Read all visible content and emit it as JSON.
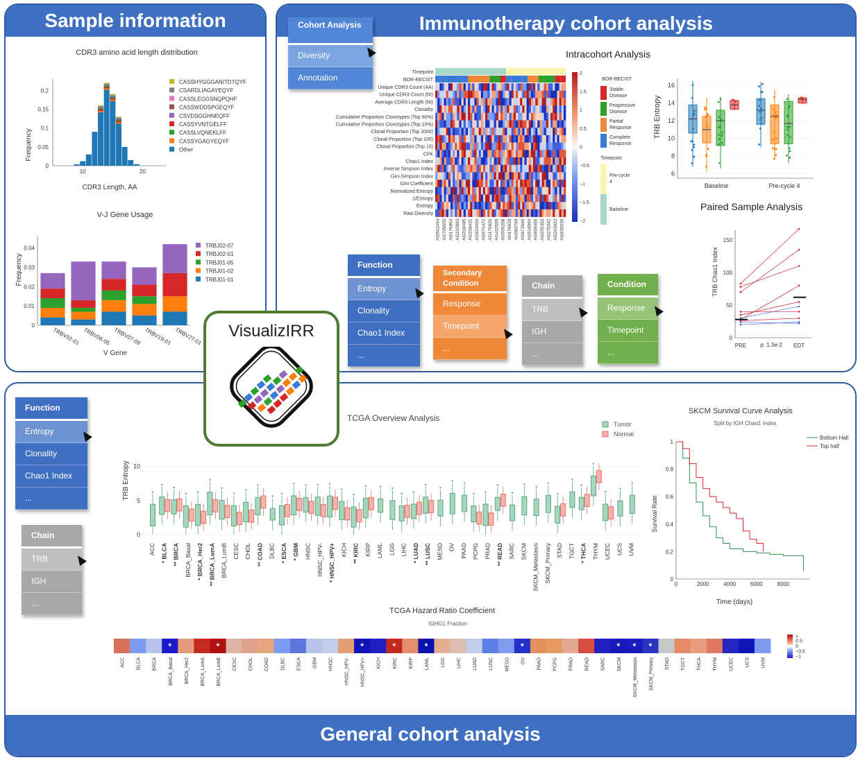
{
  "panels": {
    "sample_info": "Sample information",
    "immuno": "Immunotherapy cohort analysis",
    "general": "General cohort analysis",
    "logo": "VisualizIRR"
  },
  "colors": {
    "blue": "#3e6fc1",
    "orange": "#f0883a",
    "gray": "#a8a8a8",
    "green": "#72b04d",
    "border": "#2e5aa8",
    "logo_border": "#4f7a32"
  },
  "cdr3_chart": {
    "title": "CDR3 amino acid length distribution",
    "xlabel": "CDR3 Length, AA",
    "ylabel": "Frequency",
    "yticks": [
      "0",
      "0.05",
      "0.1",
      "0.15",
      "0.2"
    ],
    "xticks": [
      "10",
      "20"
    ],
    "legend": [
      "CASSHYGGGANITDTQYF",
      "CSARDLIAGAYEQYF",
      "CASSLEGGSNQPQHF",
      "CASSWDDSPGEQYF",
      "CSVDSGGHNEQFF",
      "CASSYVNTGELFF",
      "CASSLVQNEKLFF",
      "CASSYGAGYEQYF",
      "Other"
    ],
    "legend_colors": [
      "#bcbd22",
      "#7f7f7f",
      "#e377c2",
      "#8c564b",
      "#9467bd",
      "#d62728",
      "#2ca02c",
      "#ff7f0e",
      "#1f77b4"
    ]
  },
  "chart_data": [
    {
      "type": "bar",
      "title": "CDR3 amino acid length distribution",
      "xlabel": "CDR3 Length, AA",
      "ylabel": "Frequency",
      "x": [
        9,
        10,
        11,
        12,
        13,
        14,
        15,
        16,
        17,
        18,
        19
      ],
      "values": [
        0.004,
        0.012,
        0.03,
        0.09,
        0.16,
        0.22,
        0.19,
        0.13,
        0.05,
        0.015,
        0.004
      ],
      "ylim": [
        0,
        0.23
      ]
    },
    {
      "type": "bar",
      "title": "V-J Gene Usage",
      "xlabel": "V Gene",
      "ylabel": "Frequency",
      "categories": [
        "TRBV02-01",
        "TRBV06-05",
        "TRBV07-09",
        "TRBV19-01",
        "TRBV27-01"
      ],
      "series": [
        {
          "name": "TRBJ01-01",
          "values": [
            0.004,
            0.003,
            0.007,
            0.005,
            0.007
          ]
        },
        {
          "name": "TRBJ01-02",
          "values": [
            0.005,
            0.004,
            0.006,
            0.006,
            0.008
          ]
        },
        {
          "name": "TRBJ01-05",
          "values": [
            0.005,
            0.002,
            0.005,
            0.004,
            0.0
          ]
        },
        {
          "name": "TRBJ02-01",
          "values": [
            0.005,
            0.004,
            0.006,
            0.006,
            0.012
          ]
        },
        {
          "name": "TRBJ02-07",
          "values": [
            0.008,
            0.02,
            0.009,
            0.009,
            0.015
          ]
        }
      ],
      "ylim": [
        0,
        0.046
      ]
    },
    {
      "type": "line",
      "title": "SKCM Survival Curve Analysis",
      "subtitle": "Split by IGH Chao1 Index",
      "xlabel": "Time (days)",
      "ylabel": "Survival Rate",
      "series": [
        {
          "name": "Bottom Half",
          "x": [
            0,
            500,
            1000,
            1500,
            2000,
            2500,
            3000,
            3500,
            4000,
            5000,
            6000,
            7000,
            8000,
            9500
          ],
          "y": [
            1,
            0.88,
            0.7,
            0.56,
            0.46,
            0.38,
            0.3,
            0.26,
            0.22,
            0.2,
            0.19,
            0.18,
            0.17,
            0.06
          ]
        },
        {
          "name": "Top half",
          "x": [
            0,
            500,
            1000,
            1500,
            2000,
            2500,
            3000,
            3500,
            4000,
            4500,
            5000,
            5500,
            6000,
            6500
          ],
          "y": [
            1,
            0.95,
            0.84,
            0.74,
            0.66,
            0.6,
            0.56,
            0.52,
            0.48,
            0.44,
            0.35,
            0.29,
            0.26,
            0.2
          ]
        }
      ],
      "xlim": [
        0,
        10000
      ],
      "ylim": [
        0,
        1
      ]
    }
  ],
  "vj_chart": {
    "title": "V-J Gene Usage",
    "xlabel": "V Gene",
    "ylabel": "Frequency",
    "yticks": [
      "0",
      "0.01",
      "0.02",
      "0.03",
      "0.04"
    ],
    "legend": [
      "TRBJ02-07",
      "TRBJ02-01",
      "TRBJ01-05",
      "TRBJ01-02",
      "TRBJ01-01"
    ],
    "legend_colors": [
      "#9467bd",
      "#d62728",
      "#2ca02c",
      "#ff7f0e",
      "#1f77b4"
    ]
  },
  "cohort_menu": [
    "Cohort Analysis",
    "Diversity",
    "Annotation"
  ],
  "intracohort": {
    "title": "Intracohort Analysis",
    "track_labels": [
      "Timepoint",
      "BOR-RECIST"
    ],
    "row_labels": [
      "Unique CDR3 Count (AA)",
      "Unique CDR3 Count (Nt)",
      "Average CDR3 Length (Nt)",
      "Clonality",
      "Cumulative Proportion Clonotypes (Top 50%)",
      "Cumulative Proportion Clonotypes (Top 10%)",
      "Clonal Proportion (Top 1000)",
      "Clonal Proportion (Top 100)",
      "Clonal Proportion (Top 10)",
      "CPK",
      "Chao1 Index",
      "Inverse Simpson Index",
      "Gini-Simpson Index",
      "Gini Coefficient",
      "Normalized Entropy",
      "1/Entropy",
      "Entropy",
      "Raw Diversity"
    ],
    "col_labels": [
      "AG542464",
      "AG709555",
      "AG176963",
      "AG222893",
      "AG318485",
      "AG318431",
      "AG624450",
      "AG671472",
      "AG176920",
      "AG432595",
      "AG555208",
      "AH176929",
      "AH083769",
      "AG673660",
      "AG516994",
      "AG659465",
      "AG225362",
      "AG275342",
      "AG243922",
      "AG635530"
    ],
    "colorbar_ticks": [
      "2",
      "1.5",
      "1",
      "0.5",
      "0",
      "−0.5",
      "−1",
      "−1.5",
      "−2"
    ],
    "legend_title_1": "BOR-RECIST",
    "legend_1": [
      "Stable Disease",
      "Progressive Disease",
      "Partial Response",
      "Complete Response"
    ],
    "legend_title_2": "Timepoint",
    "legend_2": [
      "Pre-cycle 4",
      "Baseline"
    ]
  },
  "box_chart": {
    "ylabel": "TRB Entropy",
    "yticks": [
      "6",
      "8",
      "10",
      "12",
      "14",
      "16"
    ],
    "xticks": [
      "Baseline",
      "Pre-cycle 4"
    ]
  },
  "paired": {
    "title": "Paired Sample Analysis",
    "ylabel": "TRB Chao1 Index",
    "yticks": [
      "0",
      "50",
      "100",
      "150"
    ],
    "xticks": [
      "PRE",
      "EDT"
    ],
    "pvalue": "p: 1.3e-2"
  },
  "menus": {
    "function": [
      "Function",
      "Entropy",
      "Clonality",
      "Chao1 Index",
      "..."
    ],
    "secondary": [
      "Secondary Condition",
      "Response",
      "Timepoint",
      "..."
    ],
    "chain": [
      "Chain",
      "TRB",
      "IGH",
      "..."
    ],
    "condition": [
      "Condition",
      "Response",
      "Timepoint",
      "..."
    ]
  },
  "tcga": {
    "title": "TCGA Overview Analysis",
    "ylabel": "TRB Entropy",
    "yticks": [
      "0",
      "5",
      "10"
    ],
    "legend": [
      "Tumor",
      "Normal"
    ],
    "categories": [
      "ACC",
      "* BLCA",
      "** BRCA",
      "BRCA_Basal",
      "* BRCA_Her2",
      "** BRCA_LumA",
      "BRCA_LumB",
      "CESC",
      "CHOL",
      "** COAD",
      "DLBC",
      "* ESCA",
      "* GBM",
      "HNSC",
      "HNSC_HPV-",
      "* HNSC_HPV+",
      "KICH",
      "** KIRC",
      "KIRP",
      "LAML",
      "LGG",
      "LIHC",
      "* LUAD",
      "** LUSC",
      "MESO",
      "OV",
      "PAAD",
      "PCPG",
      "PRAD",
      "** READ",
      "SARC",
      "SKCM",
      "SKCM_Metastasis",
      "SKCM_Primary",
      "STAD",
      "TGCT",
      "* THCA",
      "THYM",
      "UCEC",
      "UCS",
      "UVM"
    ]
  },
  "hazard": {
    "title": "TCGA Hazard Ratio Coefficient",
    "subtitle": "IGHG1 Fraction",
    "categories": [
      "ACC",
      "BLCA",
      "BRCA",
      "BRCA_Basal",
      "BRCA_Her2",
      "BRCA_LumA",
      "BRCA_LumB",
      "CESC",
      "CHOL",
      "COAD",
      "DLBC",
      "ESCA",
      "GBM",
      "HNSC",
      "HNSC_HPV-",
      "HNSC_HPV+",
      "KICH",
      "KIRC",
      "KIRP",
      "LAML",
      "LGG",
      "LIHC",
      "LUAD",
      "LUSC",
      "MESO",
      "OV",
      "PAAD",
      "PCPG",
      "PRAD",
      "READ",
      "SARC",
      "SKCM",
      "SKCM_Metastasis",
      "SKCM_Primary",
      "STAD",
      "TGCT",
      "THCA",
      "THYM",
      "UCEC",
      "UCS",
      "UVM"
    ],
    "colorbar_ticks": [
      "1",
      "0.5",
      "0",
      "−0.5",
      "−1"
    ],
    "star": "*"
  },
  "survival": {
    "title": "SKCM Survival Curve Analysis",
    "subtitle": "Split by IGH Chao1 Index",
    "xlabel": "Time (days)",
    "ylabel": "Survival Rate",
    "xticks": [
      "0",
      "2000",
      "4000",
      "6000",
      "8000"
    ],
    "yticks": [
      "0",
      "0.2",
      "0.4",
      "0.6",
      "0.8",
      "1"
    ],
    "legend": [
      "Bottom Half",
      "Top half"
    ]
  },
  "general_menus": {
    "function": [
      "Function",
      "Entropy",
      "Clonality",
      "Chao1 Index",
      "..."
    ],
    "chain": [
      "Chain",
      "TRB",
      "IGH",
      "..."
    ]
  }
}
